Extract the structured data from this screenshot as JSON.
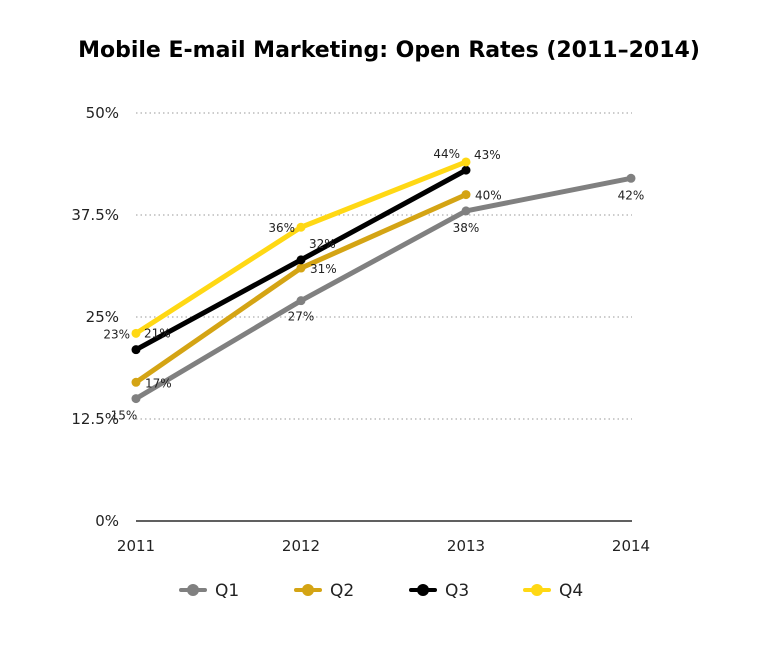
{
  "chart_data": {
    "type": "line",
    "title": "Mobile E-mail Marketing: Open Rates (2011–2014)",
    "xlabel": "",
    "ylabel": "",
    "categories": [
      "2011",
      "2012",
      "2013",
      "2014"
    ],
    "ylim": [
      0,
      50
    ],
    "yticks": [
      {
        "value": 0,
        "label": "0%"
      },
      {
        "value": 12.5,
        "label": "12.5%"
      },
      {
        "value": 25,
        "label": "25%"
      },
      {
        "value": 37.5,
        "label": "37.5%"
      },
      {
        "value": 50,
        "label": "50%"
      }
    ],
    "grid": "horizontal-dotted",
    "legend_position": "bottom",
    "series": [
      {
        "name": "Q1",
        "color": "#808080",
        "values": [
          15,
          27,
          38,
          42
        ],
        "labels": [
          "15%",
          "27%",
          "38%",
          "42%"
        ]
      },
      {
        "name": "Q2",
        "color": "#D4A414",
        "values": [
          17,
          31,
          40,
          null
        ],
        "labels": [
          "17%",
          "31%",
          "40%",
          ""
        ]
      },
      {
        "name": "Q3",
        "color": "#000000",
        "values": [
          21,
          32,
          43,
          null
        ],
        "labels": [
          "21%",
          "32%",
          "43%",
          ""
        ]
      },
      {
        "name": "Q4",
        "color": "#FFD814",
        "values": [
          23,
          36,
          44,
          null
        ],
        "labels": [
          "23%",
          "36%",
          "44%",
          ""
        ]
      }
    ]
  }
}
